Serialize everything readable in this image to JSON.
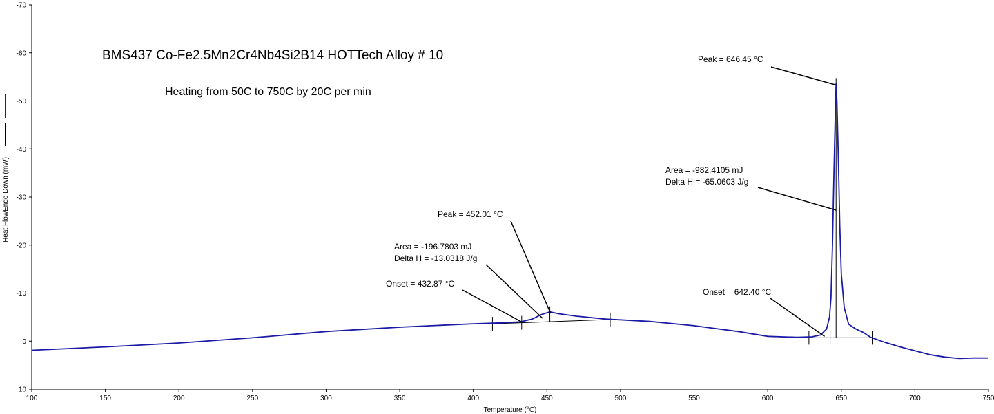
{
  "chart_data": {
    "type": "line",
    "title": "BMS437 Co-Fe2.5Mn2Cr4Nb4Si2B14 HOTTech Alloy # 10",
    "subtitle": "Heating from 50C to 750C by 20C per min",
    "xlabel": "Temperature (°C)",
    "ylabel": "Heat FlowEndo Down (mW)",
    "xlim": [
      100,
      750
    ],
    "ylim": [
      10,
      -70
    ],
    "y_inverted": true,
    "grid": false,
    "x_ticks": [
      "100",
      "150",
      "200",
      "250",
      "300",
      "350",
      "400",
      "450",
      "500",
      "550",
      "600",
      "650",
      "700",
      "750"
    ],
    "y_ticks": [
      "-70",
      "-60",
      "-50",
      "-40",
      "-30",
      "-20",
      "-10",
      "0",
      "10"
    ],
    "series": [
      {
        "color": "#1a1aa6",
        "x": [
          100,
          150,
          200,
          250,
          300,
          350,
          400,
          420,
          432,
          440,
          446,
          452,
          458,
          470,
          490,
          520,
          550,
          580,
          600,
          620,
          630,
          636,
          640,
          642,
          643,
          644,
          645,
          646,
          646.45,
          647,
          648,
          649,
          650,
          652,
          655,
          660,
          665,
          670,
          680,
          690,
          700,
          710,
          720,
          730,
          740,
          750
        ],
        "y": [
          1.9,
          1.2,
          0.4,
          -0.7,
          -2.0,
          -2.9,
          -3.6,
          -3.8,
          -4.0,
          -4.6,
          -5.5,
          -6.1,
          -5.7,
          -5.2,
          -4.6,
          -4.1,
          -3.2,
          -2.0,
          -1.0,
          -0.8,
          -0.9,
          -1.3,
          -2.5,
          -5.0,
          -9.0,
          -20.0,
          -35.0,
          -48.0,
          -53.6,
          -50.0,
          -38.0,
          -24.0,
          -14.0,
          -7.0,
          -3.5,
          -2.5,
          -1.8,
          -0.8,
          0.3,
          1.2,
          2.0,
          2.8,
          3.3,
          3.6,
          3.5,
          3.5
        ]
      }
    ],
    "annotations": {
      "peak1_label": "Peak = 646.45 °C",
      "area1_label": "Area = -982.4105 mJ",
      "dh1_label": "Delta H = -65.0603 J/g",
      "onset1_label": "Onset = 642.40 °C",
      "peak2_label": "Peak = 452.01 °C",
      "area2_label": "Area = -196.7803 mJ",
      "dh2_label": "Delta H = -13.0318 J/g",
      "onset2_label": "Onset = 432.87 °C"
    },
    "peak_events": [
      {
        "peak_x": 452.01,
        "peak_y": -6.1,
        "onset_x": 432.87,
        "onset_y": -4.0,
        "start_x": 413,
        "start_y": -3.6,
        "end_x": 493,
        "end_y": -4.5
      },
      {
        "peak_x": 646.45,
        "peak_y": -53.6,
        "onset_x": 642.4,
        "onset_y": -0.7,
        "start_x": 628,
        "start_y": -0.7,
        "end_x": 671,
        "end_y": -0.7
      }
    ]
  }
}
